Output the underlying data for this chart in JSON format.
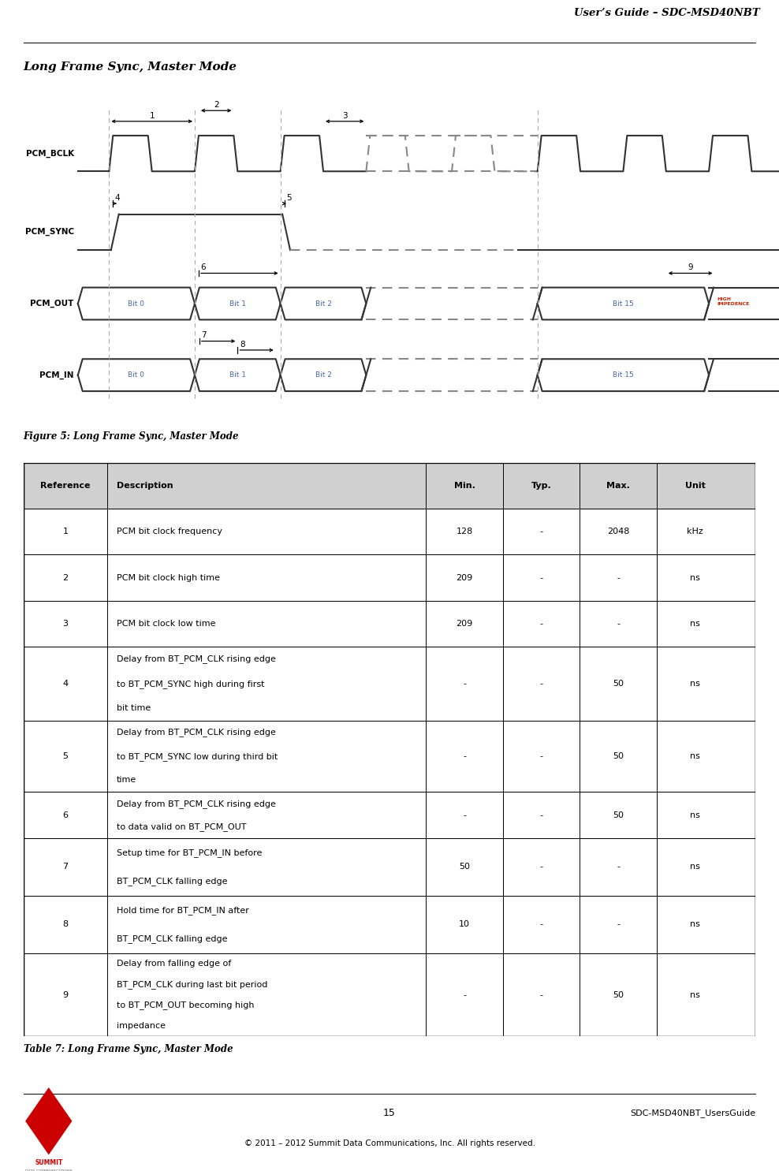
{
  "page_title": "User’s Guide – SDC-MSD40NBT",
  "section_title": "Long Frame Sync, Master Mode",
  "figure_caption": "Figure 5: Long Frame Sync, Master Mode",
  "table_caption": "Table 7: Long Frame Sync, Master Mode",
  "footer_page": "15",
  "footer_right": "SDC-MSD40NBT_UsersGuide",
  "footer_copy": "© 2011 – 2012 Summit Data Communications, Inc. All rights reserved.",
  "table_headers": [
    "Reference",
    "Description",
    "Min.",
    "Typ.",
    "Max.",
    "Unit"
  ],
  "table_rows": [
    [
      "1",
      "PCM bit clock frequency",
      "128",
      "-",
      "2048",
      "kHz"
    ],
    [
      "2",
      "PCM bit clock high time",
      "209",
      "-",
      "-",
      "ns"
    ],
    [
      "3",
      "PCM bit clock low time",
      "209",
      "-",
      "-",
      "ns"
    ],
    [
      "4",
      "Delay from BT_PCM_CLK rising edge\nto BT_PCM_SYNC high during first\nbit time",
      "-",
      "-",
      "50",
      "ns"
    ],
    [
      "5",
      "Delay from BT_PCM_CLK rising edge\nto BT_PCM_SYNC low during third bit\ntime",
      "-",
      "-",
      "50",
      "ns"
    ],
    [
      "6",
      "Delay from BT_PCM_CLK rising edge\nto data valid on BT_PCM_OUT",
      "-",
      "-",
      "50",
      "ns"
    ],
    [
      "7",
      "Setup time for BT_PCM_IN before\nBT_PCM_CLK falling edge",
      "50",
      "-",
      "-",
      "ns"
    ],
    [
      "8",
      "Hold time for BT_PCM_IN after\nBT_PCM_CLK falling edge",
      "10",
      "-",
      "-",
      "ns"
    ],
    [
      "9",
      "Delay from falling edge of\nBT_PCM_CLK during last bit period\nto BT_PCM_OUT becoming high\nimpedance",
      "-",
      "-",
      "50",
      "ns"
    ]
  ],
  "header_bg": "#d0d0d0",
  "signal_color": "#333333",
  "dashed_color": "#888888",
  "ann_color": "#000000",
  "num_color": "#000000",
  "bit_text_color": "#4466aa",
  "hi_imp_color": "#cc2200"
}
